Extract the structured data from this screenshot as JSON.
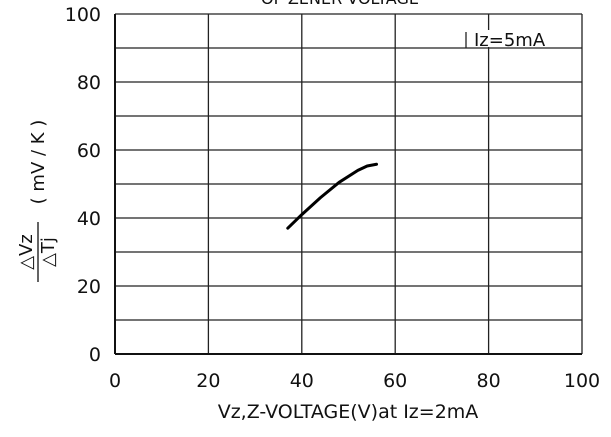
{
  "chart_data": {
    "type": "line",
    "title": "OF ZENER VOLTAGE",
    "xlabel": "Vz,Z-VOLTAGE(V)at Iz=2mA",
    "ylabel_numerator": "△Vz",
    "ylabel_denominator": "△Tj",
    "ylabel_unit": "( mV / K )",
    "annotation": "Iz=5mA",
    "x": [
      37,
      40,
      44,
      48,
      52,
      54,
      56
    ],
    "series": [
      {
        "color": "#000000",
        "values": [
          37,
          41,
          46,
          50.5,
          54,
          55.3,
          55.8
        ]
      }
    ],
    "xlim": [
      0,
      100
    ],
    "xticks": [
      0,
      20,
      40,
      60,
      80,
      100
    ],
    "ylim": [
      0,
      100
    ],
    "yticks": [
      0,
      20,
      40,
      60,
      80,
      100
    ],
    "yminor": [
      10,
      30,
      50,
      70,
      90
    ],
    "grid": true
  }
}
